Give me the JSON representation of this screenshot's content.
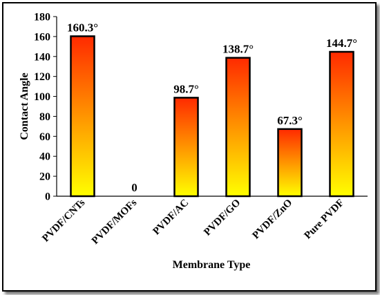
{
  "chart_data": {
    "type": "bar",
    "categories": [
      "PVDF/CNTs",
      "PVDF/MOFs",
      "PVDF/AC",
      "PVDF/GO",
      "PVDF/ZnO",
      "Pure PVDF"
    ],
    "values": [
      160.3,
      0,
      98.7,
      138.7,
      67.3,
      144.7
    ],
    "data_labels": [
      "160.3°",
      "0",
      "98.7°",
      "138.7°",
      "67.3°",
      "144.7°"
    ],
    "xlabel": "Membrane Type",
    "ylabel": "Contact Angle",
    "ylim": [
      0,
      180
    ],
    "yticks": [
      0,
      20,
      40,
      60,
      80,
      100,
      120,
      140,
      160,
      180
    ],
    "grid": false,
    "bar_gradient": {
      "top": "#ff2a00",
      "bottom": "#ffff00",
      "outline": "#000000"
    }
  }
}
